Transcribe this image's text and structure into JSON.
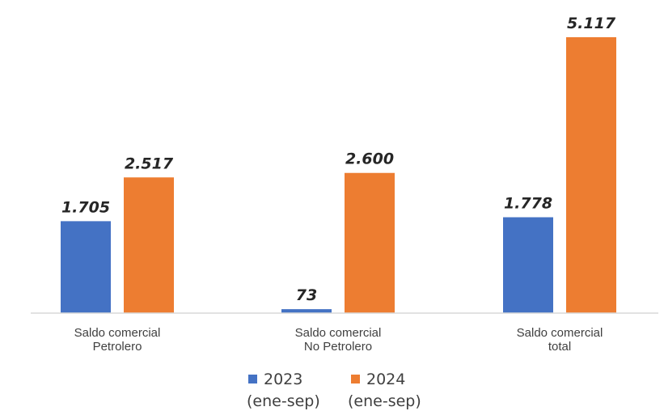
{
  "chart_data": {
    "type": "bar",
    "title": "",
    "xlabel": "",
    "ylabel": "",
    "categories": [
      [
        "Saldo comercial",
        "Petrolero"
      ],
      [
        "Saldo comercial",
        "No Petrolero"
      ],
      [
        "Saldo comercial",
        "total"
      ]
    ],
    "series": [
      {
        "name": [
          "2023",
          "(ene-sep)"
        ],
        "color": "#4472C4",
        "values": [
          1705,
          73,
          1778
        ],
        "labels": [
          "1.705",
          "73",
          "1.778"
        ]
      },
      {
        "name": [
          "2024",
          "(ene-sep)"
        ],
        "color": "#ED7D31",
        "values": [
          2517,
          2600,
          5117
        ],
        "labels": [
          "2.517",
          "2.600",
          "5.117"
        ]
      }
    ],
    "ylim": [
      0,
      5117
    ],
    "grid": false,
    "legend": "bottom",
    "axis_color": "#D9D9D9"
  }
}
